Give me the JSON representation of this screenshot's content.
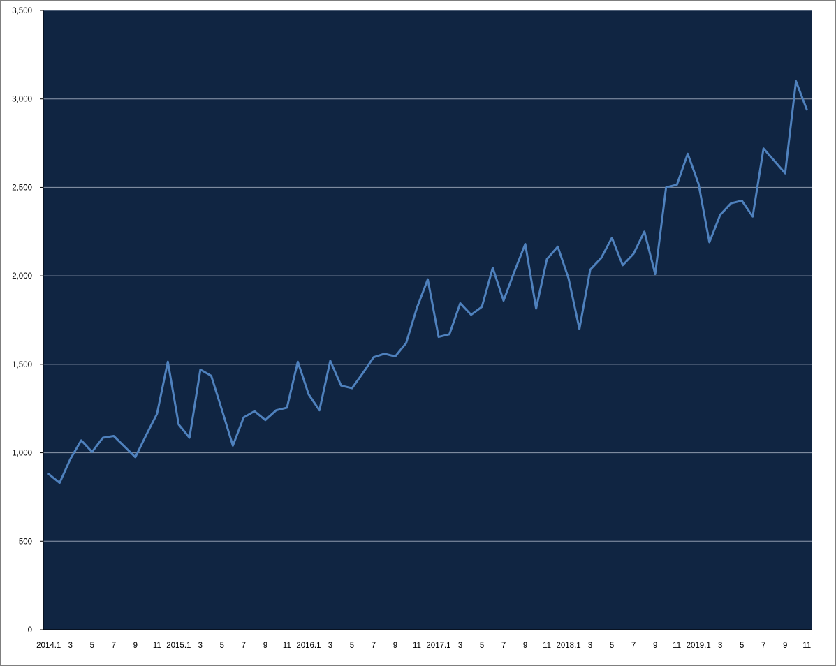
{
  "chart_data": {
    "type": "line",
    "title": "",
    "xlabel": "",
    "ylabel": "",
    "ylim": [
      0,
      3500
    ],
    "y_ticks": [
      0,
      500,
      1000,
      1500,
      2000,
      2500,
      3000,
      3500
    ],
    "y_tick_labels": [
      "0",
      "500",
      "1,000",
      "1,500",
      "2,000",
      "2,500",
      "3,000",
      "3,500"
    ],
    "grid": "horizontal",
    "legend": "none",
    "x": [
      "2014-01",
      "2014-02",
      "2014-03",
      "2014-04",
      "2014-05",
      "2014-06",
      "2014-07",
      "2014-08",
      "2014-09",
      "2014-10",
      "2014-11",
      "2014-12",
      "2015-01",
      "2015-02",
      "2015-03",
      "2015-04",
      "2015-05",
      "2015-06",
      "2015-07",
      "2015-08",
      "2015-09",
      "2015-10",
      "2015-11",
      "2015-12",
      "2016-01",
      "2016-02",
      "2016-03",
      "2016-04",
      "2016-05",
      "2016-06",
      "2016-07",
      "2016-08",
      "2016-09",
      "2016-10",
      "2016-11",
      "2016-12",
      "2017-01",
      "2017-02",
      "2017-03",
      "2017-04",
      "2017-05",
      "2017-06",
      "2017-07",
      "2017-08",
      "2017-09",
      "2017-10",
      "2017-11",
      "2017-12",
      "2018-01",
      "2018-02",
      "2018-03",
      "2018-04",
      "2018-05",
      "2018-06",
      "2018-07",
      "2018-08",
      "2018-09",
      "2018-10",
      "2018-11",
      "2018-12",
      "2019-01",
      "2019-02",
      "2019-03",
      "2019-04",
      "2019-05",
      "2019-06",
      "2019-07",
      "2019-08",
      "2019-09",
      "2019-10",
      "2019-11"
    ],
    "x_tick_labels": [
      "2014.1",
      "",
      "3",
      "",
      "5",
      "",
      "7",
      "",
      "9",
      "",
      "11",
      "",
      "2015.1",
      "",
      "3",
      "",
      "5",
      "",
      "7",
      "",
      "9",
      "",
      "11",
      "",
      "2016.1",
      "",
      "3",
      "",
      "5",
      "",
      "7",
      "",
      "9",
      "",
      "11",
      "",
      "2017.1",
      "",
      "3",
      "",
      "5",
      "",
      "7",
      "",
      "9",
      "",
      "11",
      "",
      "2018.1",
      "",
      "3",
      "",
      "5",
      "",
      "7",
      "",
      "9",
      "",
      "11",
      "",
      "2019.1",
      "",
      "3",
      "",
      "5",
      "",
      "7",
      "",
      "9",
      "",
      "11"
    ],
    "series": [
      {
        "values": [
          880,
          830,
          965,
          1070,
          1005,
          1085,
          1095,
          1035,
          975,
          1100,
          1220,
          1515,
          1160,
          1085,
          1470,
          1435,
          1240,
          1040,
          1200,
          1235,
          1185,
          1240,
          1255,
          1515,
          1330,
          1240,
          1520,
          1380,
          1365,
          1450,
          1540,
          1560,
          1545,
          1620,
          1820,
          1980,
          1655,
          1670,
          1845,
          1780,
          1825,
          2045,
          1860,
          2025,
          2180,
          1815,
          2095,
          2165,
          1985,
          1700,
          2035,
          2100,
          2215,
          2060,
          2125,
          2250,
          2010,
          2500,
          2515,
          2690,
          2520,
          2190,
          2345,
          2410,
          2425,
          2335,
          2720,
          2650,
          2580,
          3100,
          2940
        ],
        "color": "#4f81bd"
      }
    ],
    "colors": {
      "plot_background": "#102542",
      "gridline": "#8e9aad",
      "line": "#4f81bd",
      "axis": "#000000"
    }
  }
}
